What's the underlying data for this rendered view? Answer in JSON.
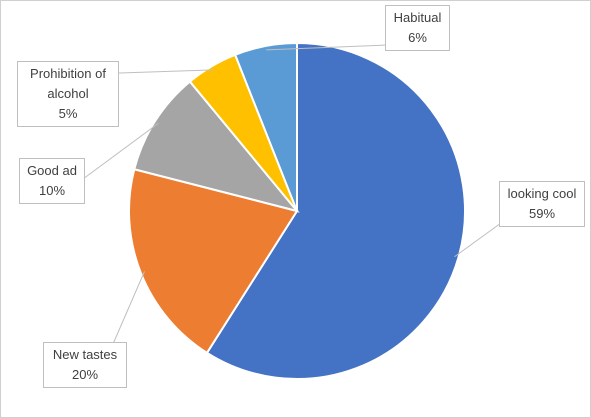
{
  "chart_data": {
    "type": "pie",
    "categories": [
      "looking cool",
      "New tastes",
      "Good ad",
      "Prohibition of alcohol",
      "Habitual"
    ],
    "values": [
      59,
      20,
      10,
      5,
      6
    ],
    "value_labels": [
      "59%",
      "20%",
      "10%",
      "5%",
      "6%"
    ],
    "colors": [
      "#4472c4",
      "#ed7d31",
      "#a5a5a5",
      "#ffc000",
      "#5b9bd5"
    ]
  }
}
